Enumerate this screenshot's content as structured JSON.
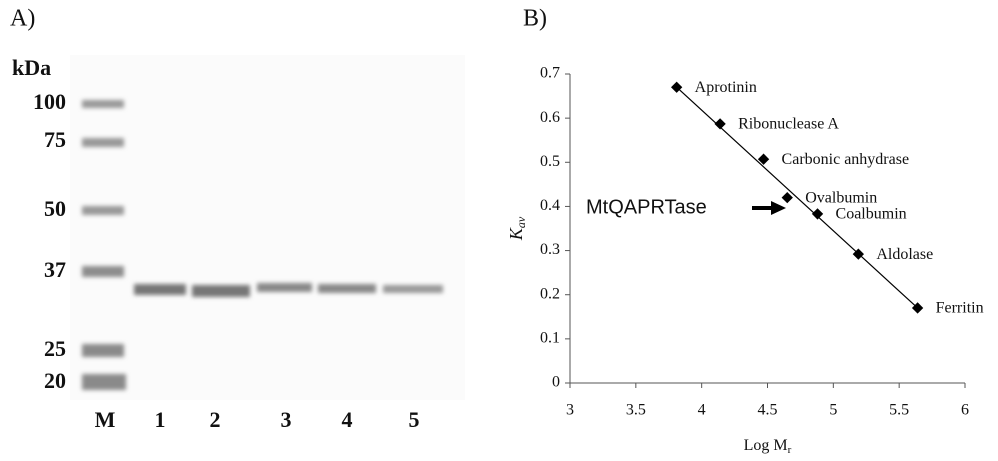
{
  "panel_a": {
    "label": "A)",
    "unit": "kDa",
    "markers": [
      "100",
      "75",
      "50",
      "37",
      "25",
      "20"
    ],
    "lanes": [
      "M",
      "1",
      "2",
      "3",
      "4",
      "5"
    ]
  },
  "chart_data": {
    "type": "scatter",
    "panel_label": "B)",
    "x_label": "Log M",
    "x_label_sub": "r",
    "y_label": "K",
    "y_label_sub": "av",
    "categories": [
      "Aprotinin",
      "Ribonuclease A",
      "Carbonic anhydrase",
      "Ovalbumin",
      "Coalbumin",
      "Aldolase",
      "Ferritin"
    ],
    "x": [
      3.81,
      4.14,
      4.47,
      4.65,
      4.88,
      5.19,
      5.64
    ],
    "values": [
      0.67,
      0.587,
      0.507,
      0.42,
      0.383,
      0.292,
      0.17
    ],
    "color": "#000000",
    "fit_line": {
      "x": [
        3.81,
        5.64
      ],
      "y": [
        0.67,
        0.17
      ]
    },
    "annotation": "MtQAPRTase",
    "xlim": [
      3,
      6
    ],
    "xticks": [
      3,
      3.5,
      4,
      4.5,
      5,
      5.5,
      6
    ],
    "ylim": [
      0,
      0.7
    ],
    "yticks": [
      0,
      0.1,
      0.2,
      0.3,
      0.4,
      0.5,
      0.6,
      0.7
    ],
    "grid": false
  }
}
